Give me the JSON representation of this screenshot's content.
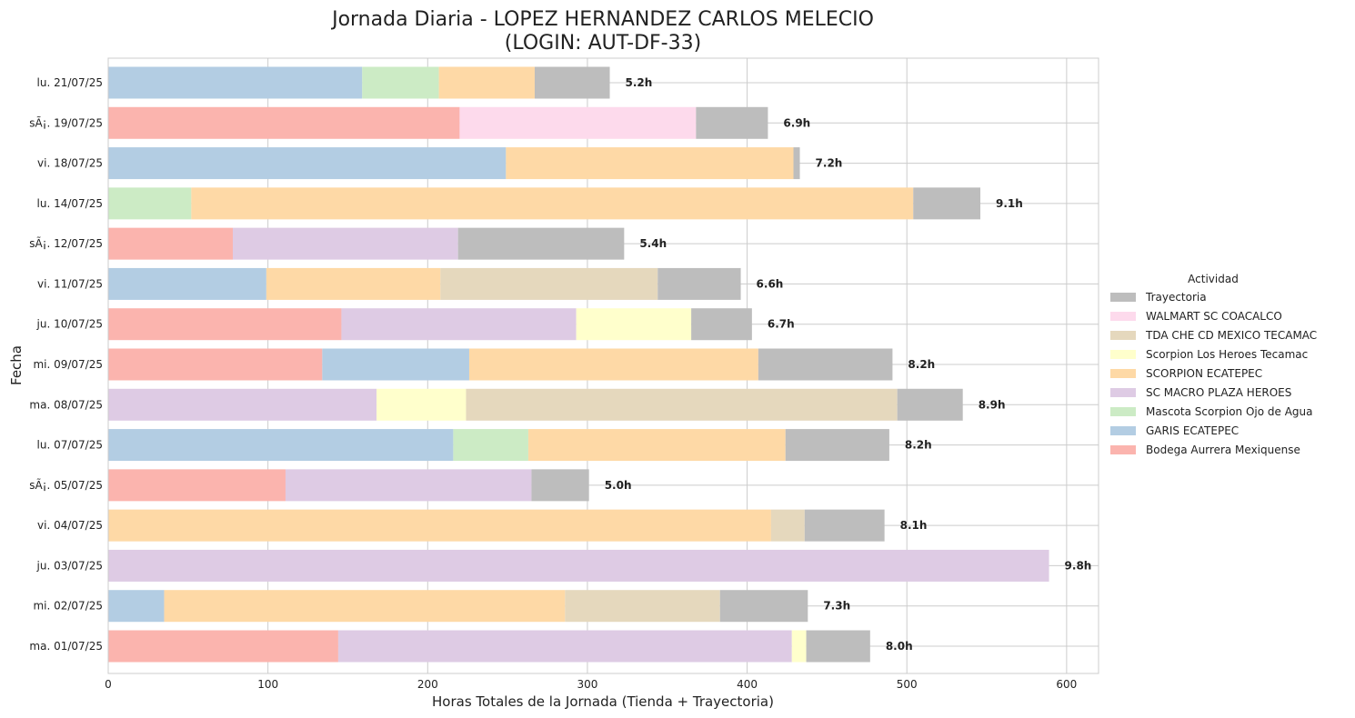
{
  "chart_data": {
    "type": "bar",
    "orientation": "horizontal",
    "stacked": true,
    "title_line1": "Jornada Diaria - LOPEZ HERNANDEZ CARLOS MELECIO",
    "title_line2": "(LOGIN: AUT-DF-33)",
    "xlabel": "Horas Totales de la Jornada (Tienda + Trayectoria)",
    "ylabel": "Fecha",
    "xlim": [
      0,
      620
    ],
    "xticks": [
      0,
      100,
      200,
      300,
      400,
      500,
      600
    ],
    "grid": true,
    "legend": {
      "title": "Actividad",
      "placement": "right"
    },
    "categories": [
      "lu. 21/07/25",
      "sÃ¡. 19/07/25",
      "vi. 18/07/25",
      "lu. 14/07/25",
      "sÃ¡. 12/07/25",
      "vi. 11/07/25",
      "ju. 10/07/25",
      "mi. 09/07/25",
      "ma. 08/07/25",
      "lu. 07/07/25",
      "sÃ¡. 05/07/25",
      "vi. 04/07/25",
      "ju. 03/07/25",
      "mi. 02/07/25",
      "ma. 01/07/25"
    ],
    "totals": [
      "5.2h",
      "6.9h",
      "7.2h",
      "9.1h",
      "5.4h",
      "6.6h",
      "6.7h",
      "8.2h",
      "8.9h",
      "8.2h",
      "5.0h",
      "8.1h",
      "9.8h",
      "7.3h",
      "8.0h"
    ],
    "series": [
      {
        "name": "Bodega Aurrera Mexiquense",
        "color": "#fbb4ae",
        "values": [
          0,
          220,
          0,
          0,
          78,
          0,
          146,
          134,
          0,
          0,
          111,
          0,
          0,
          0,
          144
        ]
      },
      {
        "name": "GARIS ECATEPEC",
        "color": "#b3cde3",
        "values": [
          159,
          0,
          249,
          0,
          0,
          99,
          0,
          92,
          0,
          216,
          0,
          0,
          0,
          35,
          0
        ]
      },
      {
        "name": "Mascota Scorpion Ojo de Agua",
        "color": "#ccebc5",
        "values": [
          48,
          0,
          0,
          52,
          0,
          0,
          0,
          0,
          0,
          47,
          0,
          0,
          0,
          0,
          0
        ]
      },
      {
        "name": "SC MACRO PLAZA HEROES",
        "color": "#decbe4",
        "values": [
          0,
          0,
          0,
          0,
          141,
          0,
          147,
          0,
          168,
          0,
          154,
          0,
          589,
          0,
          284
        ]
      },
      {
        "name": "SCORPION ECATEPEC",
        "color": "#fed9a6",
        "values": [
          60,
          0,
          180,
          452,
          0,
          109,
          0,
          181,
          0,
          161,
          0,
          415,
          0,
          251,
          0
        ]
      },
      {
        "name": "Scorpion Los Heroes Tecamac",
        "color": "#ffffcc",
        "values": [
          0,
          0,
          0,
          0,
          0,
          0,
          72,
          0,
          56,
          0,
          0,
          0,
          0,
          0,
          9
        ]
      },
      {
        "name": "TDA CHE CD MEXICO TECAMAC",
        "color": "#e5d8bd",
        "values": [
          0,
          0,
          0,
          0,
          0,
          136,
          0,
          0,
          270,
          0,
          0,
          21,
          0,
          97,
          0
        ]
      },
      {
        "name": "WALMART SC COACALCO",
        "color": "#fddaec",
        "values": [
          0,
          148,
          0,
          0,
          0,
          0,
          0,
          0,
          0,
          0,
          0,
          0,
          0,
          0,
          0
        ]
      },
      {
        "name": "Trayectoria",
        "color": "#bdbdbd",
        "values": [
          47,
          45,
          4,
          42,
          104,
          52,
          38,
          84,
          41,
          65,
          36,
          50,
          0,
          55,
          40
        ]
      }
    ]
  }
}
